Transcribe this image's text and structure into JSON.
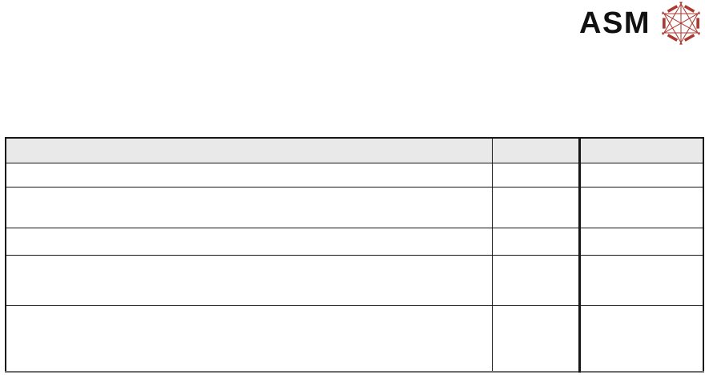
{
  "logo": {
    "text": "ASM",
    "text_color": "#111111",
    "icon": "asm-hexagon-lattice-icon",
    "icon_color": "#AC3A31"
  },
  "table": {
    "header_fill": "#e9e9e9",
    "border_color": "#161616",
    "bottom_border_color": "#6e6e6e",
    "columns": [
      {
        "name": "col-1",
        "header": ""
      },
      {
        "name": "col-2",
        "header": ""
      },
      {
        "name": "col-3",
        "header": ""
      }
    ],
    "rows": [
      {
        "type": "header",
        "cells": [
          "",
          "",
          ""
        ]
      },
      {
        "type": "body",
        "cells": [
          "",
          "",
          ""
        ]
      },
      {
        "type": "body",
        "cells": [
          "",
          "",
          ""
        ]
      },
      {
        "type": "body",
        "cells": [
          "",
          "",
          ""
        ]
      },
      {
        "type": "body",
        "cells": [
          "",
          "",
          ""
        ]
      },
      {
        "type": "body",
        "cells": [
          "",
          "",
          ""
        ]
      }
    ]
  }
}
